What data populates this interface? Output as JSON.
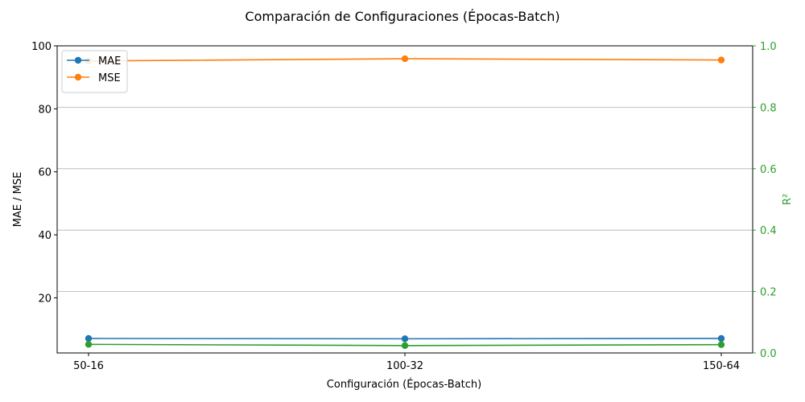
{
  "chart_data": {
    "type": "line",
    "title": "Comparación de Configuraciones (Épocas-Batch)",
    "xlabel": "Configuración (Épocas-Batch)",
    "ylabel_left": "MAE / MSE",
    "ylabel_right": "R²",
    "categories": [
      "50-16",
      "100-32",
      "150-64"
    ],
    "ylim_left": [
      2.5,
      100
    ],
    "yticks_left": [
      20,
      40,
      60,
      80,
      100
    ],
    "ylim_right": [
      0,
      1
    ],
    "yticks_right": [
      "0.0",
      "0.2",
      "0.4",
      "0.6",
      "0.8",
      "1.0"
    ],
    "grid": "horizontal",
    "legend_placement": "top-left",
    "series": [
      {
        "name": "MAE",
        "axis": "left",
        "color": "#1f77b4",
        "values": [
          7.1,
          7.0,
          7.1
        ]
      },
      {
        "name": "MSE",
        "axis": "left",
        "color": "#ff7f0e",
        "values": [
          95.2,
          95.9,
          95.5
        ]
      },
      {
        "axis": "right",
        "color": "#2ca02c",
        "values": [
          0.028,
          0.024,
          0.027
        ]
      }
    ],
    "right_axis_color": "#2ca02c"
  }
}
